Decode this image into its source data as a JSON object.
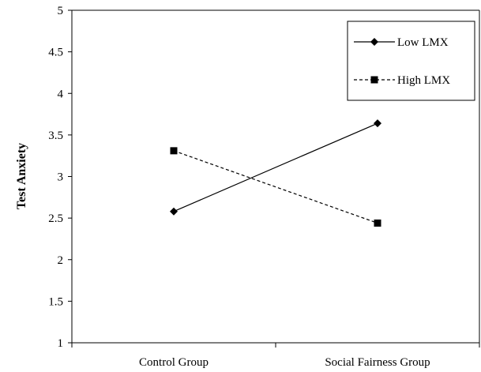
{
  "chart_data": {
    "type": "line",
    "title": "",
    "xlabel": "",
    "ylabel": "Test Anxiety",
    "categories": [
      "Control Group",
      "Social Fairness Group"
    ],
    "ylim": [
      1,
      5
    ],
    "yticks": [
      "1",
      "1.5",
      "2",
      "2.5",
      "3",
      "3.5",
      "4",
      "4.5",
      "5"
    ],
    "grid": false,
    "legend_position": "top-right",
    "series": [
      {
        "name": "Low LMX",
        "values": [
          2.58,
          3.64
        ],
        "marker": "diamond",
        "line_style": "solid",
        "color": "#000000"
      },
      {
        "name": "High LMX",
        "values": [
          3.31,
          2.44
        ],
        "marker": "square",
        "line_style": "dashed",
        "color": "#000000"
      }
    ]
  }
}
